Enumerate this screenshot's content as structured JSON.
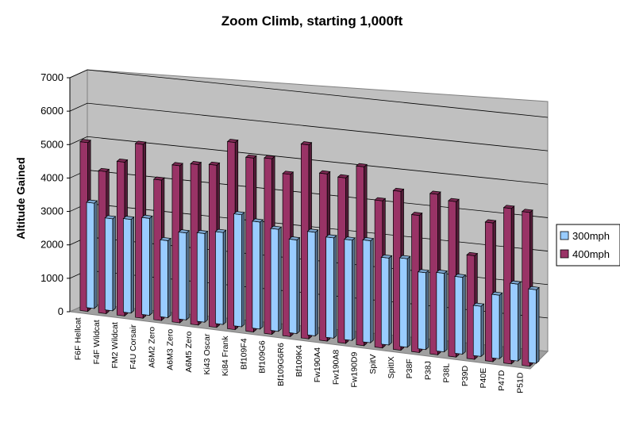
{
  "chart_data": {
    "type": "bar",
    "title": "Zoom Climb, starting 1,000ft",
    "xlabel": "",
    "ylabel": "Altitude Gained",
    "ylim": [
      0,
      7000
    ],
    "yticks": [
      0,
      1000,
      2000,
      3000,
      4000,
      5000,
      6000,
      7000
    ],
    "grid": true,
    "legend_position": "right",
    "categories": [
      "F6F Hellcat",
      "F4F Wildcat",
      "FM2 Wildcat",
      "F4U Corsair",
      "A6M2 Zero",
      "A6M3 Zero",
      "A6M5 Zero",
      "Ki43 Oscar",
      "Ki84 Frank",
      "Bf109F4",
      "Bf109G6",
      "Bf109G6R6",
      "Bf109K4",
      "Fw190A4",
      "Fw190A8",
      "Fw190D9",
      "SpitV",
      "SpitIX",
      "P38F",
      "P38J",
      "P38L",
      "P39D",
      "P40E",
      "P47D",
      "P51D"
    ],
    "series": [
      {
        "name": "300mph",
        "color": "#99ccff",
        "values": [
          3150,
          2750,
          2800,
          2900,
          2300,
          2600,
          2650,
          2750,
          3350,
          3200,
          3050,
          2800,
          3100,
          3000,
          3000,
          3050,
          2600,
          2650,
          2300,
          2350,
          2300,
          1500,
          1900,
          2300,
          2200
        ]
      },
      {
        "name": "400mph",
        "color": "#993366",
        "values": [
          5050,
          4250,
          4600,
          5200,
          4200,
          4700,
          4800,
          4850,
          5600,
          5200,
          5250,
          4850,
          5800,
          5000,
          4950,
          5350,
          4400,
          4750,
          4100,
          4800,
          4650,
          3100,
          4150,
          4650,
          4600
        ]
      }
    ]
  }
}
